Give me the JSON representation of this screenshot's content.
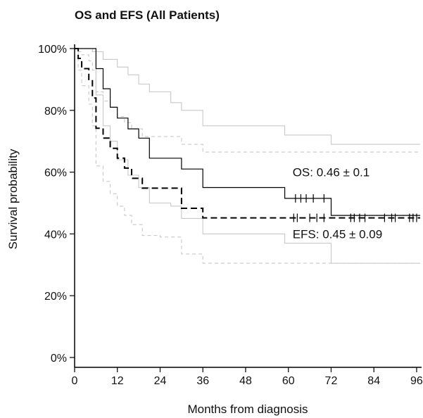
{
  "chart_data": {
    "type": "line",
    "title": "OS and EFS (All Patients)",
    "xlabel": "Months from diagnosis",
    "ylabel": "Survival probability",
    "xlim": [
      0,
      97
    ],
    "ylim": [
      0,
      1
    ],
    "x_ticks": [
      0,
      12,
      24,
      36,
      48,
      60,
      72,
      84,
      96
    ],
    "x_tick_labels": [
      "0",
      "12",
      "24",
      "36",
      "48",
      "60",
      "72",
      "84",
      "96"
    ],
    "y_ticks": [
      0,
      0.2,
      0.4,
      0.6,
      0.8,
      1.0
    ],
    "y_tick_labels": [
      "0%",
      "20%",
      "40%",
      "60%",
      "80%",
      "100%"
    ],
    "annotations": [
      {
        "text": "OS:  0.46 ± 0.1",
        "x": 60,
        "y": 0.6
      },
      {
        "text": "EFS:  0.45 ± 0.09",
        "x": 60,
        "y": 0.4
      }
    ],
    "series": [
      {
        "style": "solid",
        "color": "#000000",
        "width": 1.2,
        "x": [
          0,
          5,
          6,
          8,
          10,
          12,
          15,
          18,
          21,
          27,
          30,
          36,
          59,
          64,
          72,
          97
        ],
        "y": [
          1.0,
          1.0,
          0.935,
          0.87,
          0.81,
          0.775,
          0.74,
          0.71,
          0.645,
          0.645,
          0.61,
          0.55,
          0.515,
          0.515,
          0.46,
          0.46
        ],
        "censor_x": [
          62,
          63.5,
          65,
          67,
          70
        ]
      },
      {
        "style": "dashed",
        "color": "#000000",
        "width": 2,
        "x": [
          0,
          1,
          2,
          4,
          5,
          6,
          8,
          10,
          12,
          14,
          16,
          19,
          24,
          30,
          36,
          97
        ],
        "y": [
          1.0,
          0.968,
          0.935,
          0.9,
          0.84,
          0.742,
          0.71,
          0.677,
          0.645,
          0.613,
          0.58,
          0.548,
          0.548,
          0.483,
          0.452,
          0.452
        ],
        "censor_x": [
          61.5,
          62.5,
          66,
          68,
          70,
          77.5,
          78.5,
          80,
          81.5,
          87,
          89,
          90,
          94,
          95,
          96
        ]
      },
      {
        "style": "solid",
        "color": "#c8c8c8",
        "width": 1.1,
        "x": [
          0,
          6,
          8,
          12,
          15,
          18,
          21,
          27,
          30,
          36,
          59,
          72,
          97
        ],
        "y": [
          1.0,
          0.99,
          0.965,
          0.94,
          0.915,
          0.885,
          0.86,
          0.825,
          0.8,
          0.75,
          0.72,
          0.69,
          0.69
        ]
      },
      {
        "style": "solid",
        "color": "#c8c8c8",
        "width": 1.1,
        "x": [
          0,
          5,
          6,
          8,
          10,
          12,
          15,
          18,
          21,
          27,
          30,
          36,
          59,
          72,
          97
        ],
        "y": [
          1.0,
          0.99,
          0.85,
          0.75,
          0.7,
          0.64,
          0.59,
          0.55,
          0.5,
          0.49,
          0.45,
          0.4,
          0.37,
          0.305,
          0.305
        ]
      },
      {
        "style": "dashed",
        "color": "#c8c8c8",
        "width": 1.1,
        "x": [
          0,
          1,
          2,
          4,
          5,
          6,
          8,
          10,
          12,
          14,
          16,
          19,
          24,
          30,
          36,
          97
        ],
        "y": [
          1.0,
          0.99,
          0.98,
          0.96,
          0.93,
          0.86,
          0.83,
          0.81,
          0.78,
          0.76,
          0.74,
          0.715,
          0.715,
          0.69,
          0.665,
          0.665
        ]
      },
      {
        "style": "dashed",
        "color": "#c8c8c8",
        "width": 1.1,
        "x": [
          0,
          1,
          2,
          4,
          5,
          6,
          8,
          10,
          12,
          14,
          16,
          19,
          24,
          30,
          36,
          97
        ],
        "y": [
          1.0,
          0.93,
          0.88,
          0.82,
          0.75,
          0.62,
          0.57,
          0.53,
          0.49,
          0.46,
          0.43,
          0.395,
          0.39,
          0.335,
          0.305,
          0.305
        ]
      }
    ]
  }
}
